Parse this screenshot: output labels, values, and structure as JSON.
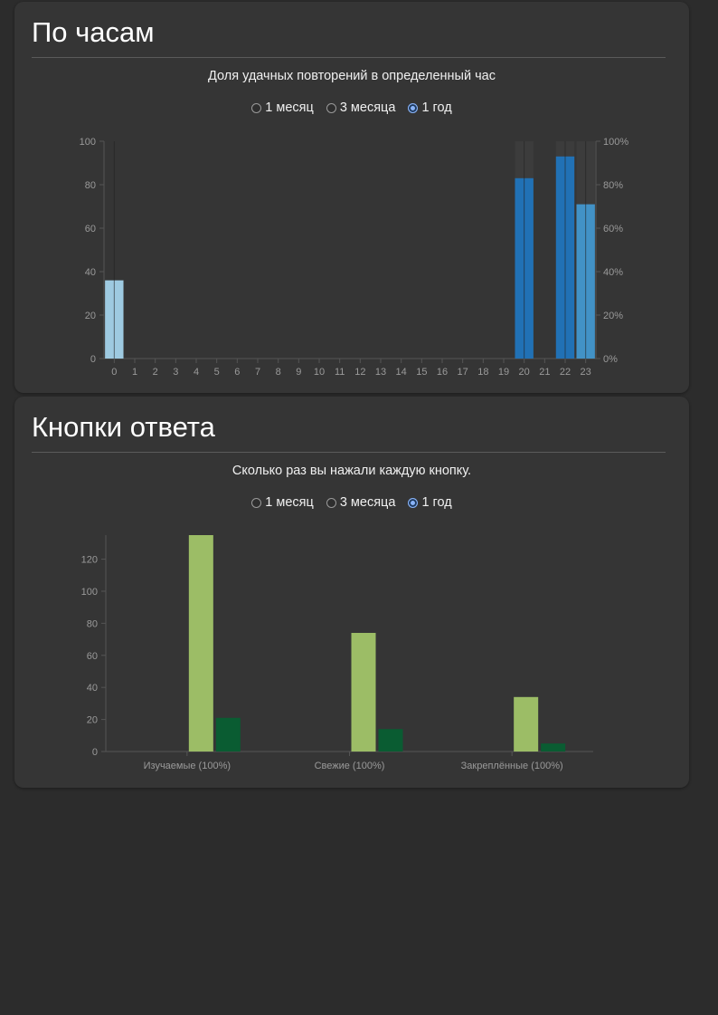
{
  "hours_section": {
    "title": "По часам",
    "subtitle": "Доля удачных повторений в определенный час",
    "range_options": [
      {
        "label": "1 месяц",
        "selected": false
      },
      {
        "label": "3 месяца",
        "selected": false
      },
      {
        "label": "1 год",
        "selected": true
      }
    ]
  },
  "buttons_section": {
    "title": "Кнопки ответа",
    "subtitle": "Сколько раз вы нажали каждую кнопку.",
    "range_options": [
      {
        "label": "1 месяц",
        "selected": false
      },
      {
        "label": "3 месяца",
        "selected": false
      },
      {
        "label": "1 год",
        "selected": true
      }
    ]
  },
  "colors": {
    "background": "#2c2c2c",
    "card": "#353535",
    "hour_bar_light": "#9ecae1",
    "hour_bar_mid": "#4292c6",
    "hour_bar_dark": "#2171b5",
    "hour_count_bar": "#3c3c3c",
    "button_light_green": "#9cbd66",
    "button_dark_green": "#0a5c32"
  },
  "chart_data": [
    {
      "type": "bar",
      "categories": [
        "0",
        "1",
        "2",
        "3",
        "4",
        "5",
        "6",
        "7",
        "8",
        "9",
        "10",
        "11",
        "12",
        "13",
        "14",
        "15",
        "16",
        "17",
        "18",
        "19",
        "20",
        "21",
        "22",
        "23"
      ],
      "series": [
        {
          "values": [
            36,
            0,
            0,
            0,
            0,
            0,
            0,
            0,
            0,
            0,
            0,
            0,
            0,
            0,
            0,
            0,
            0,
            0,
            0,
            0,
            83,
            0,
            93,
            71
          ]
        },
        {
          "values": [
            0,
            0,
            0,
            0,
            0,
            0,
            0,
            0,
            0,
            0,
            0,
            0,
            0,
            0,
            0,
            0,
            0,
            0,
            0,
            0,
            100,
            0,
            100,
            100
          ]
        }
      ],
      "yticks_left": [
        "0",
        "20",
        "40",
        "60",
        "80",
        "100"
      ],
      "yticks_right": [
        "0%",
        "20%",
        "40%",
        "60%",
        "80%",
        "100%"
      ],
      "ylim": [
        0,
        100
      ],
      "legend": "none"
    },
    {
      "type": "bar",
      "categories": [
        "Изучаемые (100%)",
        "Свежие (100%)",
        "Закреплённые (100%)"
      ],
      "series": [
        {
          "values": [
            135,
            74,
            34
          ]
        },
        {
          "values": [
            21,
            14,
            5
          ]
        }
      ],
      "yticks": [
        "0",
        "20",
        "40",
        "60",
        "80",
        "100",
        "120"
      ],
      "ylim": [
        0,
        135
      ],
      "legend": "none"
    }
  ]
}
